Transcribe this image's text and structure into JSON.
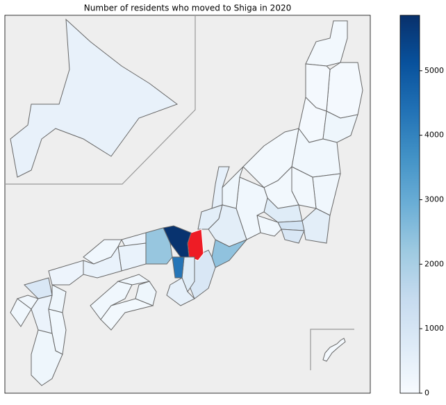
{
  "chart_data": {
    "type": "choropleth",
    "title": "Number of residents who moved to Shiga in 2020",
    "colormap": "Blues",
    "values": [
      450,
      100,
      150,
      100,
      100,
      100,
      250,
      200,
      150,
      200,
      150,
      150,
      700,
      600,
      1100,
      900,
      200,
      200,
      250,
      500,
      600,
      600,
      2400,
      900,
      null,
      5800,
      700,
      4300,
      500,
      2300,
      300,
      400,
      200,
      400,
      300,
      200,
      250,
      200,
      150,
      900,
      200,
      200,
      250,
      350,
      200,
      250
    ],
    "highlight_color": "#ee1c25",
    "clim": [
      0,
      5860
    ],
    "cticks": [
      0,
      1000,
      2000,
      3000,
      4000,
      5000
    ]
  }
}
